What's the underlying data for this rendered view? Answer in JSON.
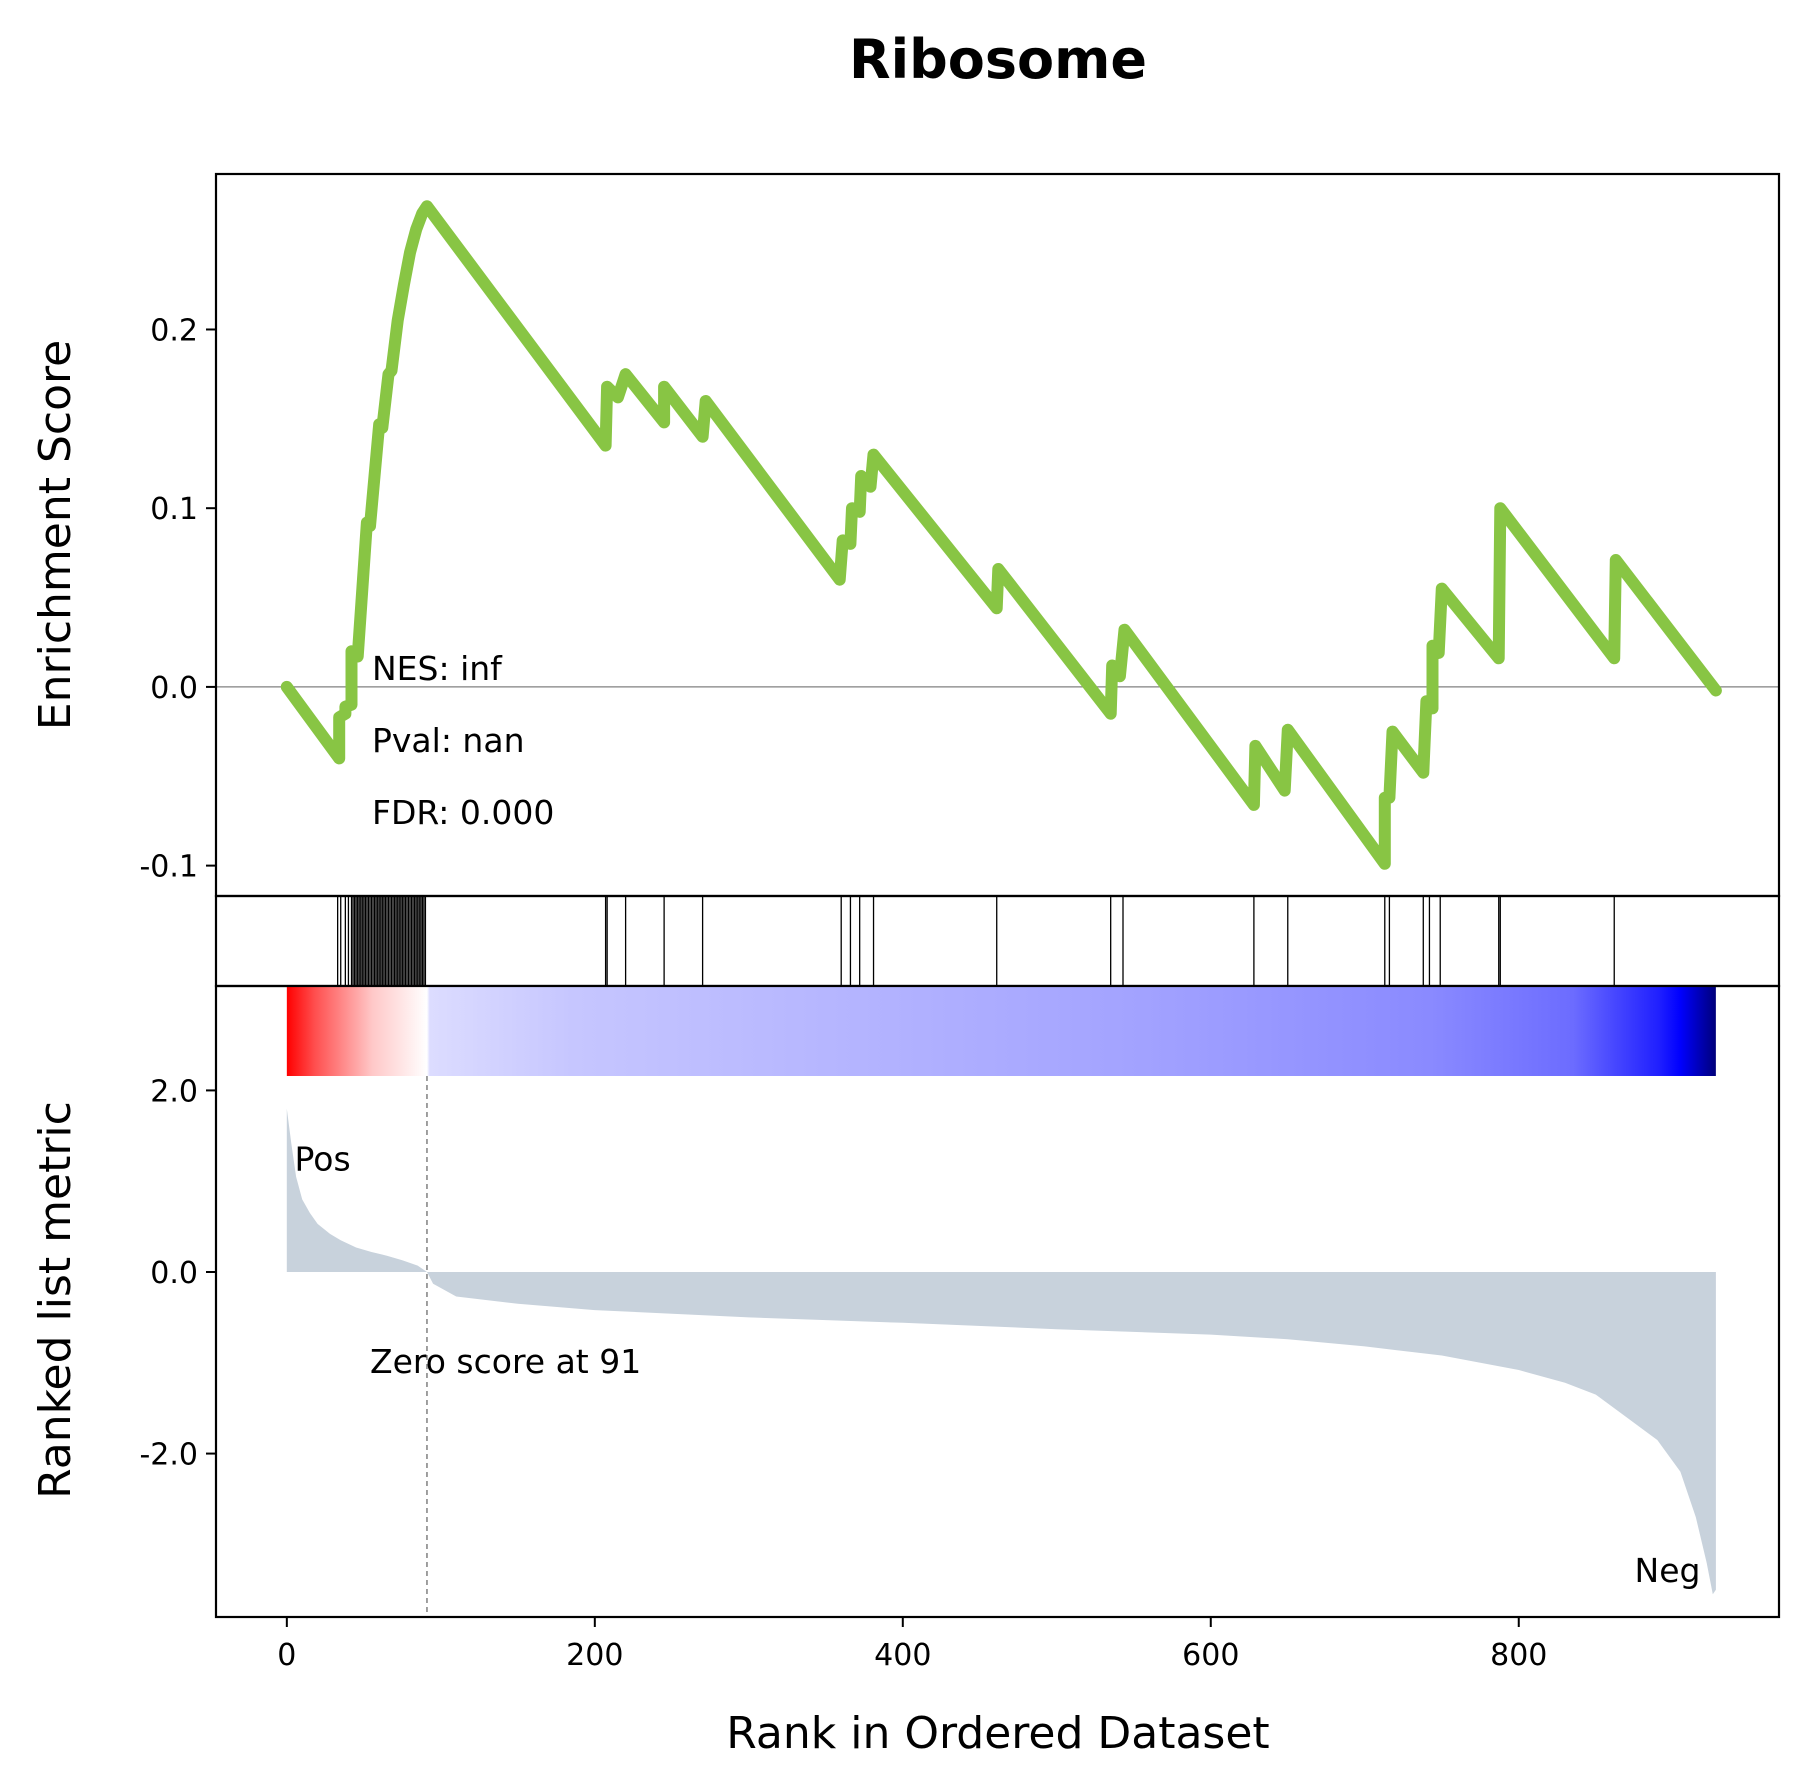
{
  "chart_data": {
    "type": "line",
    "title": "Ribosome",
    "xlabel": "Rank in Ordered Dataset",
    "xlim": [
      -46,
      969
    ],
    "xticks": [
      0,
      200,
      400,
      600,
      800
    ],
    "xtick_labels": [
      "0",
      "200",
      "400",
      "600",
      "800"
    ],
    "es_panel": {
      "ylabel": "Enrichment Score",
      "ylim": [
        -0.117,
        0.287
      ],
      "yticks": [
        -0.1,
        0.0,
        0.1,
        0.2
      ],
      "ytick_labels": [
        "-0.1",
        "0.0",
        "0.1",
        "0.2"
      ],
      "line_color": "#88c544",
      "zero_line": true,
      "stats": {
        "nes": "NES: inf",
        "pval": "Pval: nan",
        "fdr": "FDR: 0.000"
      },
      "points": [
        [
          0,
          0.0
        ],
        [
          34,
          -0.04
        ],
        [
          34,
          -0.017
        ],
        [
          38,
          -0.015
        ],
        [
          38,
          -0.011
        ],
        [
          42,
          -0.01
        ],
        [
          42,
          0.02
        ],
        [
          46,
          0.017
        ],
        [
          52,
          0.092
        ],
        [
          54,
          0.09
        ],
        [
          60,
          0.147
        ],
        [
          62,
          0.145
        ],
        [
          66,
          0.175
        ],
        [
          68,
          0.177
        ],
        [
          72,
          0.205
        ],
        [
          76,
          0.225
        ],
        [
          80,
          0.243
        ],
        [
          84,
          0.256
        ],
        [
          88,
          0.265
        ],
        [
          91,
          0.269
        ],
        [
          207,
          0.135
        ],
        [
          208,
          0.168
        ],
        [
          215,
          0.162
        ],
        [
          220,
          0.175
        ],
        [
          245,
          0.148
        ],
        [
          245,
          0.168
        ],
        [
          270,
          0.14
        ],
        [
          272,
          0.16
        ],
        [
          359,
          0.06
        ],
        [
          361,
          0.082
        ],
        [
          366,
          0.08
        ],
        [
          367,
          0.1
        ],
        [
          372,
          0.098
        ],
        [
          373,
          0.118
        ],
        [
          379,
          0.112
        ],
        [
          381,
          0.13
        ],
        [
          461,
          0.044
        ],
        [
          462,
          0.066
        ],
        [
          535,
          -0.015
        ],
        [
          536,
          0.012
        ],
        [
          541,
          0.006
        ],
        [
          544,
          0.032
        ],
        [
          628,
          -0.066
        ],
        [
          629,
          -0.033
        ],
        [
          648,
          -0.058
        ],
        [
          650,
          -0.024
        ],
        [
          713,
          -0.099
        ],
        [
          713,
          -0.062
        ],
        [
          716,
          -0.062
        ],
        [
          718,
          -0.025
        ],
        [
          738,
          -0.048
        ],
        [
          740,
          -0.008
        ],
        [
          744,
          -0.012
        ],
        [
          744,
          0.023
        ],
        [
          748,
          0.019
        ],
        [
          750,
          0.055
        ],
        [
          787,
          0.016
        ],
        [
          788,
          0.1
        ],
        [
          862,
          0.016
        ],
        [
          863,
          0.071
        ],
        [
          928,
          -0.002
        ]
      ]
    },
    "hits": [
      33,
      35,
      38,
      40,
      42,
      43,
      44,
      45,
      46,
      47,
      48,
      49,
      50,
      51,
      52,
      53,
      54,
      55,
      56,
      57,
      58,
      59,
      60,
      61,
      62,
      63,
      64,
      65,
      66,
      67,
      68,
      69,
      70,
      71,
      72,
      73,
      74,
      75,
      76,
      77,
      78,
      79,
      80,
      81,
      82,
      83,
      84,
      85,
      86,
      87,
      88,
      89,
      90,
      207,
      208,
      220,
      245,
      270,
      360,
      366,
      372,
      381,
      461,
      535,
      543,
      628,
      650,
      713,
      716,
      738,
      742,
      749,
      787,
      788,
      862
    ],
    "metric_panel": {
      "ylabel": "Ranked list metric",
      "ylim": [
        -3.8,
        3.15
      ],
      "yticks": [
        -2.0,
        0.0,
        2.0
      ],
      "ytick_labels": [
        "-2.0",
        "0.0",
        "2.0"
      ],
      "fill_color": "#c8d2dc",
      "pos_label": "Pos",
      "neg_label": "Neg",
      "pos_color": "#ff0000",
      "neg_color": "#0000ff",
      "zero_cross_rank": 91,
      "zero_cross_label": "Zero score at 91",
      "points": [
        [
          0,
          1.8
        ],
        [
          3,
          1.4
        ],
        [
          6,
          1.05
        ],
        [
          10,
          0.8
        ],
        [
          15,
          0.65
        ],
        [
          20,
          0.53
        ],
        [
          28,
          0.42
        ],
        [
          35,
          0.35
        ],
        [
          45,
          0.27
        ],
        [
          55,
          0.22
        ],
        [
          65,
          0.18
        ],
        [
          75,
          0.13
        ],
        [
          85,
          0.07
        ],
        [
          91,
          0.0
        ],
        [
          95,
          -0.13
        ],
        [
          110,
          -0.27
        ],
        [
          150,
          -0.35
        ],
        [
          200,
          -0.42
        ],
        [
          300,
          -0.5
        ],
        [
          400,
          -0.56
        ],
        [
          500,
          -0.63
        ],
        [
          600,
          -0.69
        ],
        [
          650,
          -0.74
        ],
        [
          700,
          -0.82
        ],
        [
          750,
          -0.92
        ],
        [
          800,
          -1.08
        ],
        [
          830,
          -1.22
        ],
        [
          850,
          -1.35
        ],
        [
          870,
          -1.6
        ],
        [
          890,
          -1.85
        ],
        [
          905,
          -2.2
        ],
        [
          915,
          -2.7
        ],
        [
          922,
          -3.2
        ],
        [
          926,
          -3.55
        ],
        [
          928,
          -3.5
        ]
      ],
      "colorbar_stops": [
        [
          0.0,
          "#ff0000"
        ],
        [
          0.02,
          "#ff5050"
        ],
        [
          0.06,
          "#ffc8c8"
        ],
        [
          0.098,
          "#ffffff"
        ],
        [
          0.1,
          "#dcdcff"
        ],
        [
          0.2,
          "#c6c6ff"
        ],
        [
          0.4,
          "#b4b4ff"
        ],
        [
          0.6,
          "#a2a2ff"
        ],
        [
          0.8,
          "#8a8aff"
        ],
        [
          0.9,
          "#6c6cff"
        ],
        [
          0.96,
          "#2020ff"
        ],
        [
          0.975,
          "#0000ff"
        ],
        [
          1.0,
          "#00007a"
        ]
      ]
    }
  }
}
